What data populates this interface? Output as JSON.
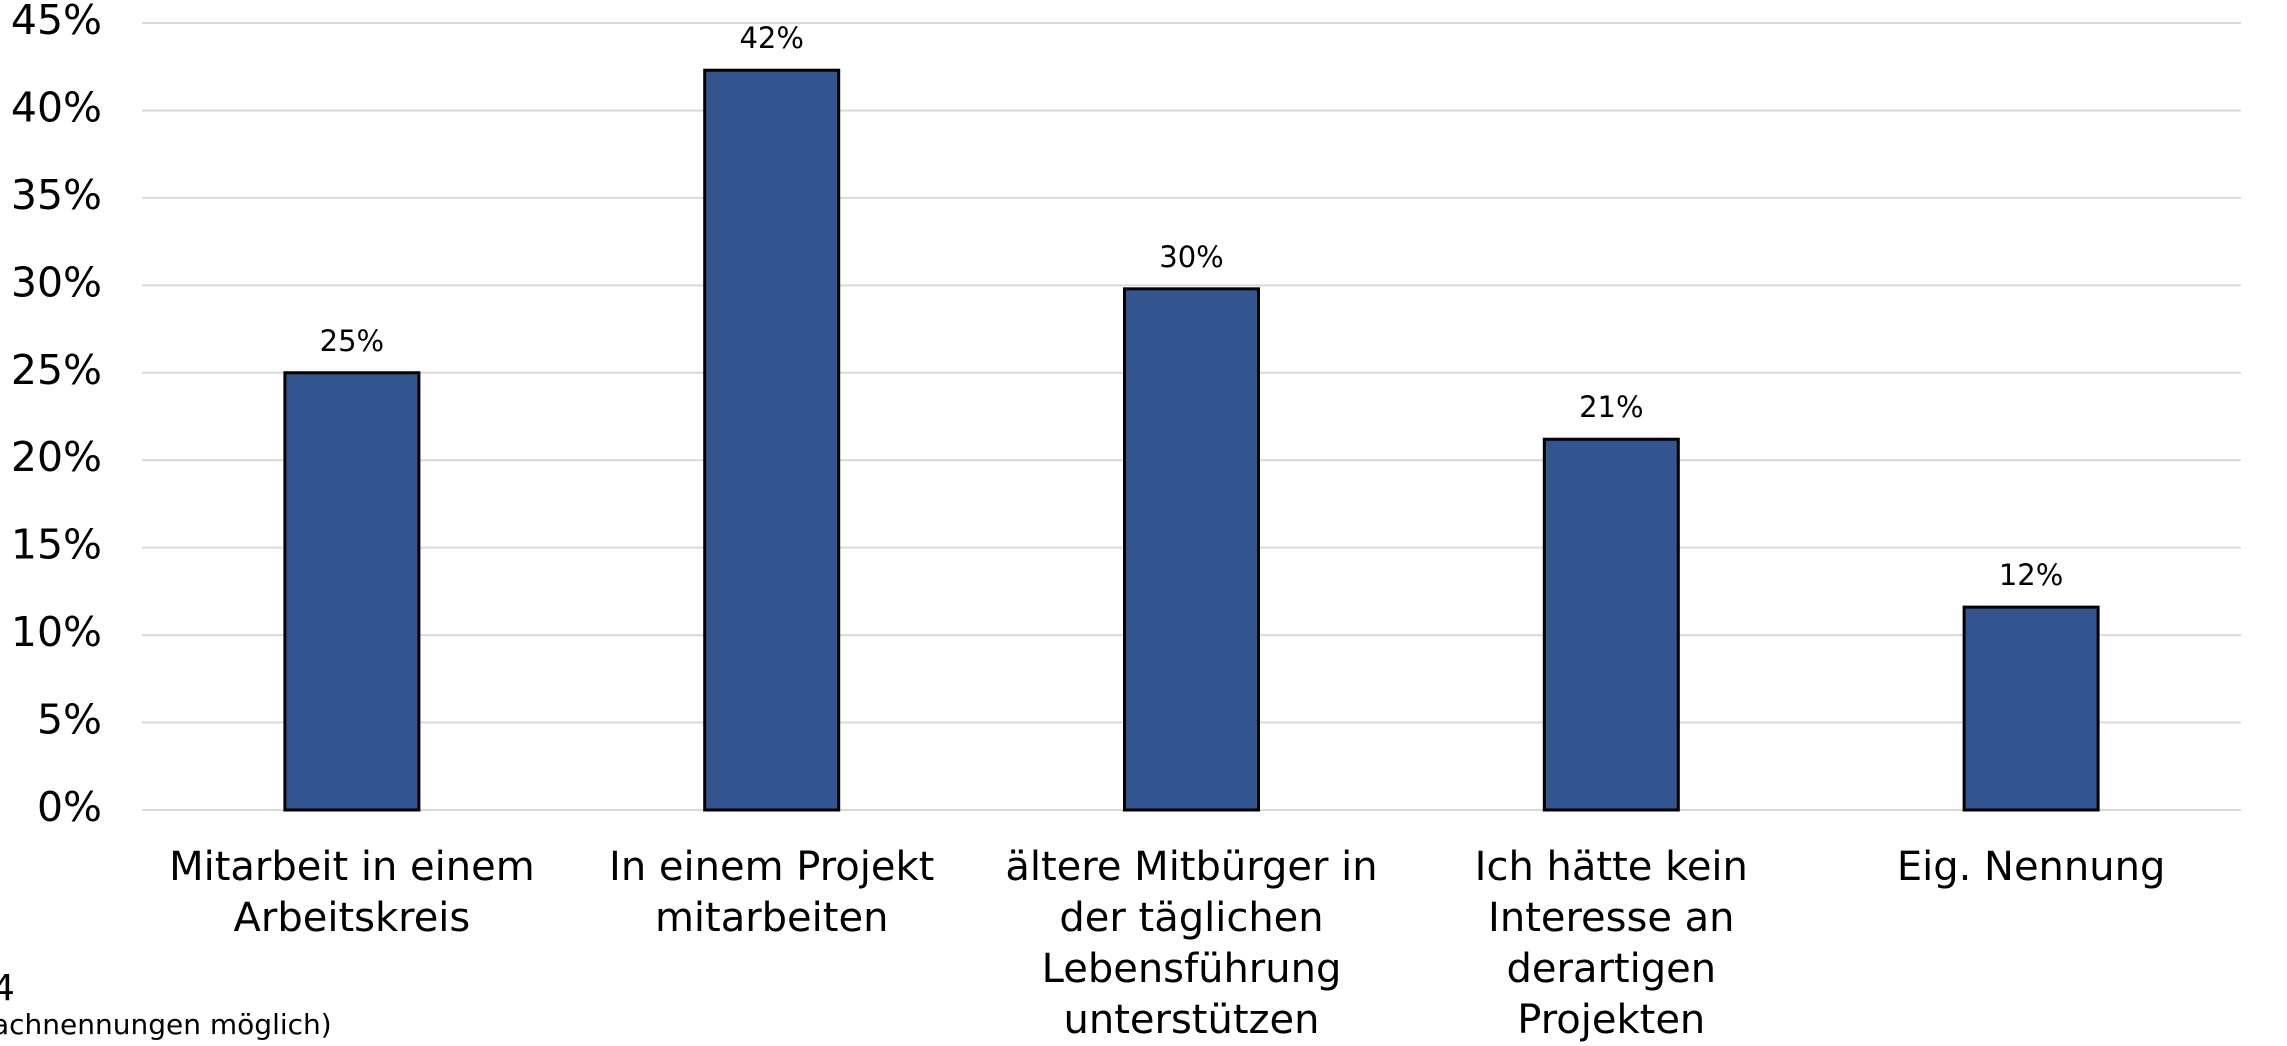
{
  "chart_data": {
    "type": "bar",
    "categories": [
      "Mitarbeit in einem Arbeitskreis",
      "In einem Projekt mitarbeiten",
      "ältere Mitbürger in der täglichen Lebensführung unterstützen",
      "Ich hätte kein Interesse an derartigen Projekten",
      "Eig. Nennung"
    ],
    "values": [
      25,
      42.3,
      29.8,
      21.2,
      11.6
    ],
    "value_labels": [
      "25%",
      "42%",
      "30%",
      "21%",
      "12%"
    ],
    "color": "#325590",
    "ylim": [
      0,
      45
    ],
    "yticks": [
      {
        "value": 0,
        "label": "0%"
      },
      {
        "value": 5,
        "label": "5%"
      },
      {
        "value": 10,
        "label": "10%"
      },
      {
        "value": 15,
        "label": "15%"
      },
      {
        "value": 20,
        "label": "20%"
      },
      {
        "value": 25,
        "label": "25%"
      },
      {
        "value": 30,
        "label": "30%"
      },
      {
        "value": 35,
        "label": "35%"
      },
      {
        "value": 40,
        "label": "40%"
      },
      {
        "value": 45,
        "label": "45%"
      }
    ],
    "grid": true,
    "annotations": [
      "4",
      "achnennungen möglich)"
    ]
  }
}
